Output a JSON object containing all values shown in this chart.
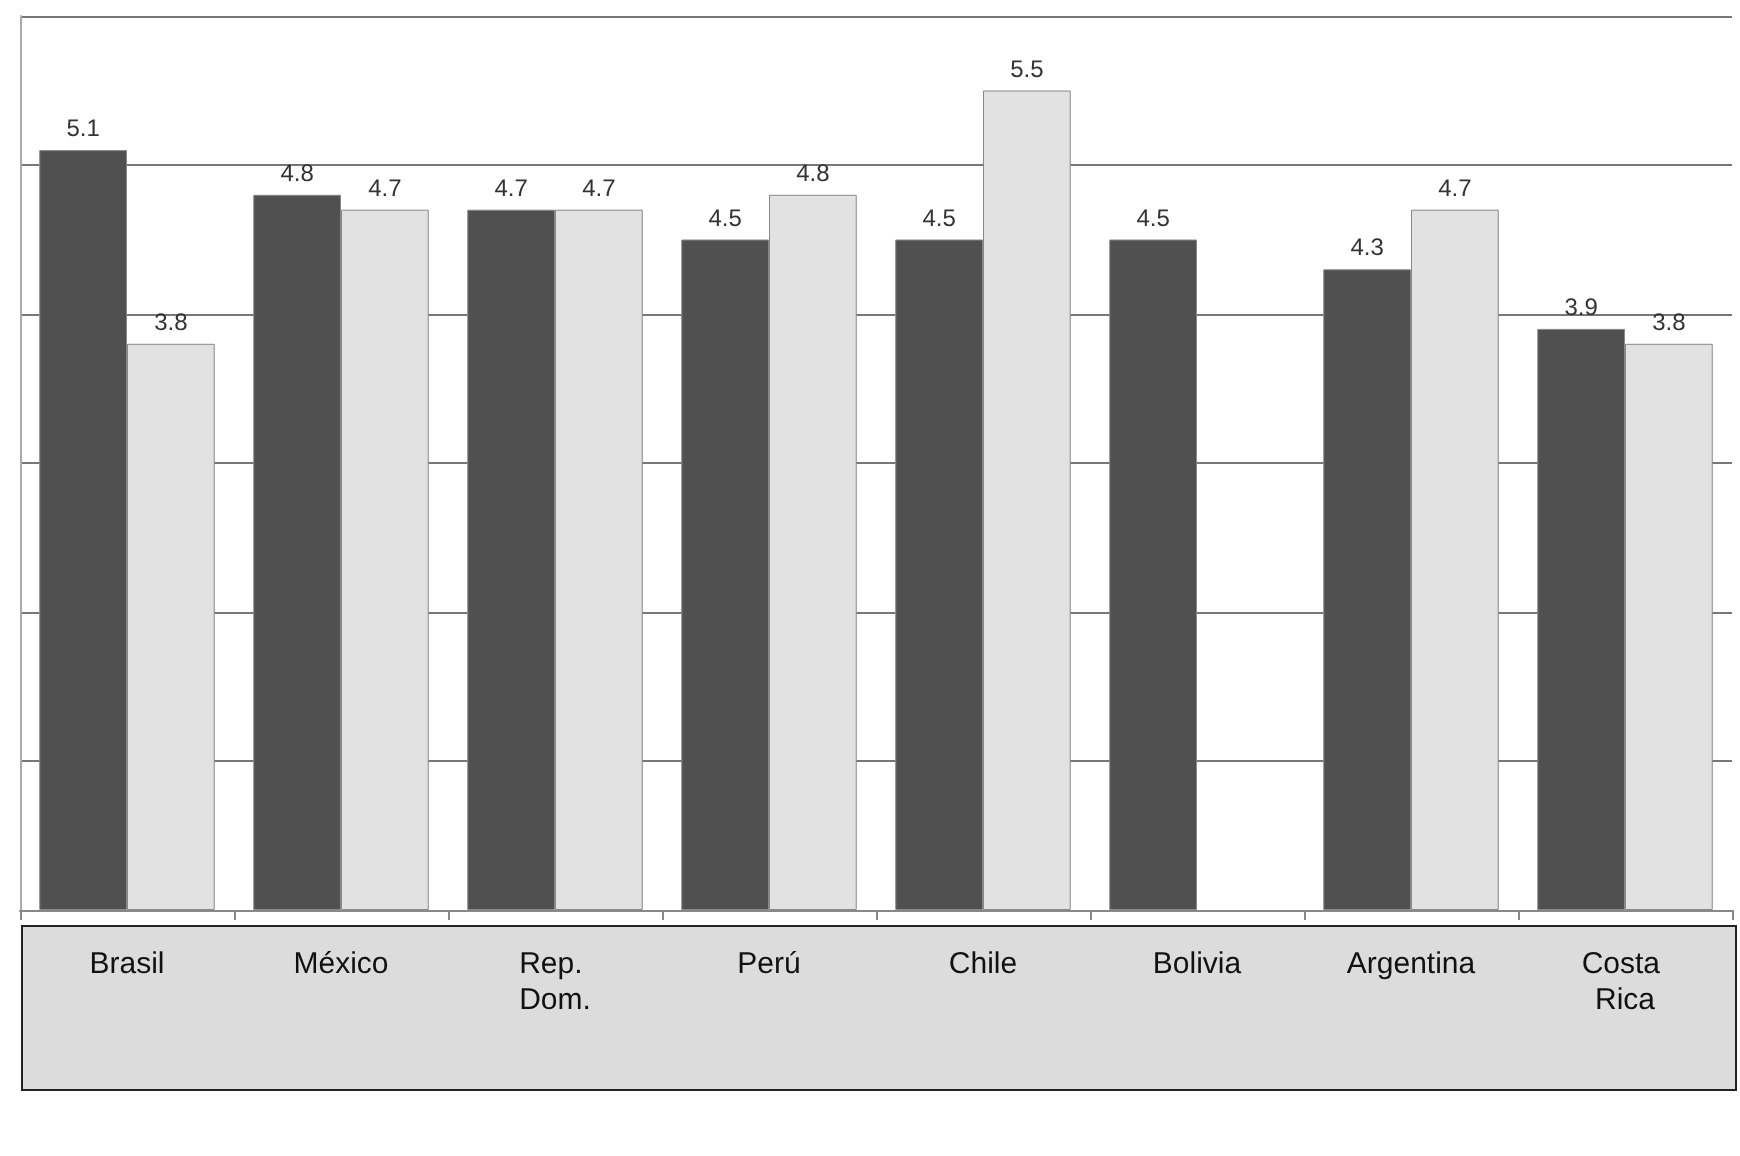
{
  "chart_data": {
    "type": "bar",
    "categories": [
      "Brasil",
      "México",
      "Rep. Dom.",
      "Perú",
      "Chile",
      "Bolivia",
      "Argentina",
      "Costa Rica"
    ],
    "series": [
      {
        "color": "#505050",
        "values": [
          5.1,
          4.8,
          4.7,
          4.5,
          4.5,
          4.5,
          4.3,
          3.9
        ]
      },
      {
        "color": "#e2e2e2",
        "values": [
          3.8,
          4.7,
          4.7,
          4.8,
          5.5,
          null,
          4.7,
          3.8
        ]
      }
    ],
    "ylim": [
      0,
      6
    ],
    "yticks": [
      {
        "value": 0,
        "label": null
      },
      {
        "value": 1,
        "label": null
      },
      {
        "value": 2,
        "label": null
      },
      {
        "value": 3,
        "label": null
      },
      {
        "value": 4,
        "label": null
      },
      {
        "value": 5,
        "label": null
      },
      {
        "value": 6,
        "label": null
      }
    ],
    "grid": "y",
    "tick_labels": "x",
    "data_labels": true
  }
}
